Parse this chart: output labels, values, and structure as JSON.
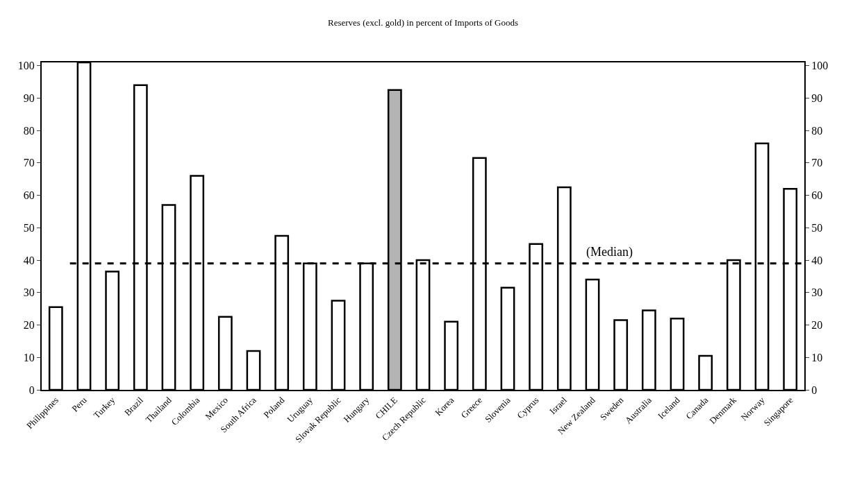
{
  "chart_data": {
    "type": "bar",
    "title": "Reserves (excl. gold) in percent of Imports of Goods",
    "categories": [
      "Philippines",
      "Peru",
      "Turkey",
      "Brazil",
      "Thailand",
      "Colombia",
      "Mexico",
      "South Africa",
      "Poland",
      "Uruguay",
      "Slovak Republic",
      "Hungary",
      "CHILE",
      "Czech Republic",
      "Korea",
      "Greece",
      "Slovenia",
      "Cyprus",
      "Israel",
      "New Zealand",
      "Sweden",
      "Australia",
      "Iceland",
      "Canada",
      "Denmark",
      "Norway",
      "Singapore"
    ],
    "values": [
      25.5,
      101,
      36.5,
      94,
      57,
      66,
      22.5,
      12,
      47.5,
      39,
      27.5,
      39,
      92.5,
      40,
      21,
      71.5,
      31.5,
      45,
      62.5,
      34,
      21.5,
      24.5,
      22,
      10.5,
      40,
      76,
      62
    ],
    "colors": [
      "#ffffff",
      "#ffffff",
      "#ffffff",
      "#ffffff",
      "#ffffff",
      "#ffffff",
      "#ffffff",
      "#ffffff",
      "#ffffff",
      "#ffffff",
      "#ffffff",
      "#ffffff",
      "#b4b4b4",
      "#ffffff",
      "#ffffff",
      "#ffffff",
      "#ffffff",
      "#ffffff",
      "#ffffff",
      "#ffffff",
      "#ffffff",
      "#ffffff",
      "#ffffff",
      "#ffffff",
      "#ffffff",
      "#ffffff",
      "#ffffff"
    ],
    "ylim": [
      0,
      101
    ],
    "yticks": [
      0,
      10,
      20,
      30,
      40,
      50,
      60,
      70,
      80,
      90,
      100
    ],
    "y2lim": [
      0,
      101
    ],
    "y2ticks": [
      0,
      10,
      20,
      30,
      40,
      50,
      60,
      70,
      80,
      90,
      100
    ],
    "ref_lines": [
      {
        "axis": "y",
        "value": 39,
        "label": "(Median)",
        "color": "#000000",
        "line_style": "dashed"
      }
    ],
    "legend": false
  }
}
